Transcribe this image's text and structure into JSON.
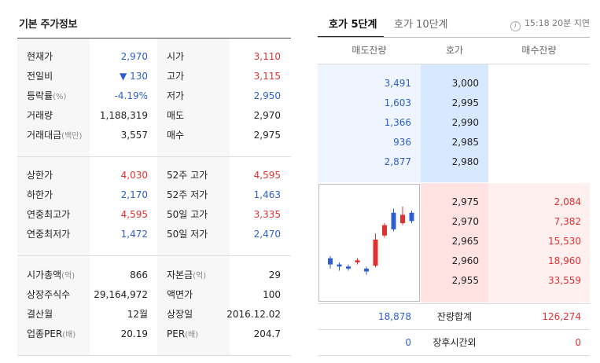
{
  "left": {
    "title": "기본 주가정보",
    "sections": [
      {
        "rows": [
          {
            "label1": "현재가",
            "unit1": "",
            "value1": "2,970",
            "color1": "blue",
            "label2": "시가",
            "unit2": "",
            "value2": "3,110",
            "color2": "red"
          },
          {
            "label1": "전일비",
            "unit1": "",
            "value1": "▼ 130",
            "color1": "blue",
            "label2": "고가",
            "unit2": "",
            "value2": "3,115",
            "color2": "red"
          },
          {
            "label1": "등락률",
            "unit1": "(%)",
            "value1": "-4.19%",
            "color1": "blue",
            "label2": "저가",
            "unit2": "",
            "value2": "2,950",
            "color2": "blue"
          },
          {
            "label1": "거래량",
            "unit1": "",
            "value1": "1,188,319",
            "color1": "",
            "label2": "매도",
            "unit2": "",
            "value2": "2,970",
            "color2": ""
          },
          {
            "label1": "거래대금",
            "unit1": "(백만)",
            "value1": "3,557",
            "color1": "",
            "label2": "매수",
            "unit2": "",
            "value2": "2,975",
            "color2": ""
          }
        ]
      },
      {
        "rows": [
          {
            "label1": "상한가",
            "unit1": "",
            "value1": "4,030",
            "color1": "red",
            "label2": "52주 고가",
            "unit2": "",
            "value2": "4,595",
            "color2": "red"
          },
          {
            "label1": "하한가",
            "unit1": "",
            "value1": "2,170",
            "color1": "blue",
            "label2": "52주 저가",
            "unit2": "",
            "value2": "1,463",
            "color2": "blue"
          },
          {
            "label1": "연중최고가",
            "unit1": "",
            "value1": "4,595",
            "color1": "red",
            "label2": "50일 고가",
            "unit2": "",
            "value2": "3,335",
            "color2": "red"
          },
          {
            "label1": "연중최저가",
            "unit1": "",
            "value1": "1,472",
            "color1": "blue",
            "label2": "50일 저가",
            "unit2": "",
            "value2": "2,470",
            "color2": "blue"
          }
        ]
      },
      {
        "rows": [
          {
            "label1": "시가총액",
            "unit1": "(억)",
            "value1": "866",
            "color1": "",
            "label2": "자본금",
            "unit2": "(억)",
            "value2": "29",
            "color2": ""
          },
          {
            "label1": "상장주식수",
            "unit1": "",
            "value1": "29,164,972",
            "color1": "",
            "label2": "액면가",
            "unit2": "",
            "value2": "100",
            "color2": ""
          },
          {
            "label1": "결산월",
            "unit1": "",
            "value1": "12월",
            "color1": "",
            "label2": "상장일",
            "unit2": "",
            "value2": "2016.12.02",
            "color2": ""
          },
          {
            "label1": "업종PER",
            "unit1": "(배)",
            "value1": "20.19",
            "color1": "",
            "label2": "PER",
            "unit2": "(배)",
            "value2": "204.7",
            "color2": ""
          }
        ]
      }
    ]
  },
  "right": {
    "tabs": [
      "호가 5단계",
      "호가 10단계"
    ],
    "active_tab": 0,
    "delay_text": "15:18 20분 지연",
    "headers": {
      "sell": "매도잔량",
      "price": "호가",
      "buy": "매수잔량"
    },
    "asks": [
      {
        "qty": "3,491",
        "price": "3,000"
      },
      {
        "qty": "1,603",
        "price": "2,995"
      },
      {
        "qty": "1,366",
        "price": "2,990"
      },
      {
        "qty": "936",
        "price": "2,985"
      },
      {
        "qty": "2,877",
        "price": "2,980"
      }
    ],
    "bids": [
      {
        "price": "2,975",
        "qty": "2,084"
      },
      {
        "price": "2,970",
        "qty": "7,382"
      },
      {
        "price": "2,965",
        "qty": "15,530"
      },
      {
        "price": "2,960",
        "qty": "18,960"
      },
      {
        "price": "2,955",
        "qty": "33,559"
      }
    ],
    "summary": [
      {
        "left": "18,878",
        "label": "잔량합계",
        "right": "126,274"
      },
      {
        "left": "0",
        "label": "장후시간외",
        "right": "0"
      }
    ],
    "colors": {
      "up": "#e03131",
      "down": "#2d5fd0",
      "ask_bg": "#eef5ff",
      "bid_bg": "#fff0f0"
    },
    "mini_chart": {
      "type": "candlestick",
      "candles": [
        {
          "o": 2930,
          "c": 2915,
          "h": 2935,
          "l": 2905
        },
        {
          "o": 2915,
          "c": 2910,
          "h": 2920,
          "l": 2900
        },
        {
          "o": 2910,
          "c": 2905,
          "h": 2915,
          "l": 2900
        },
        {
          "o": 2920,
          "c": 2925,
          "h": 2930,
          "l": 2915
        },
        {
          "o": 2905,
          "c": 2898,
          "h": 2910,
          "l": 2890
        },
        {
          "o": 2912,
          "c": 2975,
          "h": 2990,
          "l": 2908
        },
        {
          "o": 2985,
          "c": 3010,
          "h": 3015,
          "l": 2980
        },
        {
          "o": 3040,
          "c": 3000,
          "h": 3050,
          "l": 2995
        },
        {
          "o": 3015,
          "c": 3035,
          "h": 3055,
          "l": 3010
        },
        {
          "o": 3040,
          "c": 3020,
          "h": 3045,
          "l": 3015
        }
      ],
      "ylim": [
        2880,
        3070
      ]
    }
  }
}
